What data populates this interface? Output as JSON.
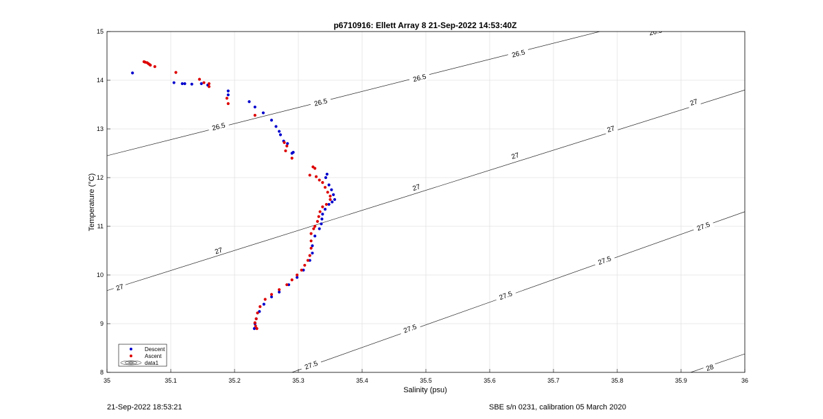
{
  "chart_data": {
    "type": "scatter",
    "title": "p6710916: Ellett Array 8 21-Sep-2022 14:53:40Z",
    "xlabel": "Salinity (psu)",
    "ylabel": "Temperature (°C)",
    "xlim": [
      35,
      36
    ],
    "ylim": [
      8,
      15
    ],
    "xticks": [
      "35",
      "35.1",
      "35.2",
      "35.3",
      "35.4",
      "35.5",
      "35.6",
      "35.7",
      "35.8",
      "35.9",
      "36"
    ],
    "yticks": [
      "8",
      "9",
      "10",
      "11",
      "12",
      "13",
      "14",
      "15"
    ],
    "grid": true,
    "legend_position": "bottom-left",
    "legend": [
      "Descent",
      "Ascent",
      "data1"
    ],
    "series": [
      {
        "name": "Descent",
        "color": "#0000cc",
        "points": [
          [
            35.04,
            14.15
          ],
          [
            35.105,
            13.95
          ],
          [
            35.118,
            13.93
          ],
          [
            35.122,
            13.93
          ],
          [
            35.133,
            13.92
          ],
          [
            35.148,
            13.93
          ],
          [
            35.158,
            13.9
          ],
          [
            35.19,
            13.78
          ],
          [
            35.19,
            13.7
          ],
          [
            35.223,
            13.56
          ],
          [
            35.232,
            13.45
          ],
          [
            35.245,
            13.33
          ],
          [
            35.258,
            13.18
          ],
          [
            35.265,
            13.05
          ],
          [
            35.27,
            12.95
          ],
          [
            35.272,
            12.88
          ],
          [
            35.277,
            12.75
          ],
          [
            35.283,
            12.7
          ],
          [
            35.292,
            12.52
          ],
          [
            35.29,
            12.5
          ],
          [
            35.345,
            12.07
          ],
          [
            35.343,
            12.0
          ],
          [
            35.348,
            11.85
          ],
          [
            35.352,
            11.75
          ],
          [
            35.355,
            11.65
          ],
          [
            35.357,
            11.55
          ],
          [
            35.353,
            11.5
          ],
          [
            35.348,
            11.45
          ],
          [
            35.342,
            11.35
          ],
          [
            35.338,
            11.25
          ],
          [
            35.337,
            11.15
          ],
          [
            35.336,
            11.05
          ],
          [
            35.333,
            10.95
          ],
          [
            35.326,
            10.8
          ],
          [
            35.322,
            10.6
          ],
          [
            35.322,
            10.45
          ],
          [
            35.318,
            10.3
          ],
          [
            35.308,
            10.1
          ],
          [
            35.298,
            9.95
          ],
          [
            35.285,
            9.8
          ],
          [
            35.27,
            9.65
          ],
          [
            35.258,
            9.55
          ],
          [
            35.246,
            9.4
          ],
          [
            35.239,
            9.25
          ],
          [
            35.234,
            9.1
          ],
          [
            35.232,
            9.0
          ],
          [
            35.231,
            8.9
          ]
        ]
      },
      {
        "name": "Ascent",
        "color": "#dd0000",
        "points": [
          [
            35.058,
            14.38
          ],
          [
            35.06,
            14.37
          ],
          [
            35.063,
            14.36
          ],
          [
            35.065,
            14.34
          ],
          [
            35.067,
            14.32
          ],
          [
            35.068,
            14.31
          ],
          [
            35.075,
            14.28
          ],
          [
            35.108,
            14.16
          ],
          [
            35.145,
            14.02
          ],
          [
            35.152,
            13.95
          ],
          [
            35.16,
            13.93
          ],
          [
            35.16,
            13.87
          ],
          [
            35.188,
            13.63
          ],
          [
            35.19,
            13.52
          ],
          [
            35.232,
            13.28
          ],
          [
            35.278,
            12.72
          ],
          [
            35.282,
            12.65
          ],
          [
            35.28,
            12.55
          ],
          [
            35.29,
            12.4
          ],
          [
            35.323,
            12.22
          ],
          [
            35.326,
            12.19
          ],
          [
            35.318,
            12.05
          ],
          [
            35.328,
            12.02
          ],
          [
            35.333,
            11.95
          ],
          [
            35.338,
            11.9
          ],
          [
            35.342,
            11.8
          ],
          [
            35.346,
            11.7
          ],
          [
            35.35,
            11.62
          ],
          [
            35.35,
            11.55
          ],
          [
            35.344,
            11.45
          ],
          [
            35.338,
            11.4
          ],
          [
            35.334,
            11.3
          ],
          [
            35.332,
            11.2
          ],
          [
            35.33,
            11.1
          ],
          [
            35.326,
            11.0
          ],
          [
            35.324,
            10.95
          ],
          [
            35.32,
            10.85
          ],
          [
            35.32,
            10.7
          ],
          [
            35.32,
            10.55
          ],
          [
            35.318,
            10.4
          ],
          [
            35.315,
            10.3
          ],
          [
            35.31,
            10.2
          ],
          [
            35.305,
            10.1
          ],
          [
            35.298,
            10.0
          ],
          [
            35.29,
            9.9
          ],
          [
            35.282,
            9.8
          ],
          [
            35.27,
            9.7
          ],
          [
            35.258,
            9.6
          ],
          [
            35.248,
            9.5
          ],
          [
            35.24,
            9.35
          ],
          [
            35.236,
            9.22
          ],
          [
            35.234,
            9.1
          ],
          [
            35.232,
            9.02
          ],
          [
            35.233,
            8.95
          ],
          [
            35.235,
            8.9
          ]
        ]
      }
    ],
    "contours": [
      {
        "level": "26.5",
        "points": [
          [
            35.0,
            12.45
          ],
          [
            36.0,
            15.75
          ]
        ],
        "labels": [
          [
            35.175,
            13.05
          ],
          [
            35.335,
            13.55
          ],
          [
            35.49,
            14.05
          ],
          [
            35.645,
            14.55
          ],
          [
            35.86,
            15.0
          ]
        ]
      },
      {
        "level": "27",
        "points": [
          [
            35.0,
            9.68
          ],
          [
            36.0,
            13.8
          ]
        ],
        "labels": [
          [
            35.02,
            9.75
          ],
          [
            35.175,
            10.5
          ],
          [
            35.485,
            11.8
          ],
          [
            35.64,
            12.45
          ],
          [
            35.79,
            13.0
          ],
          [
            35.92,
            13.55
          ]
        ]
      },
      {
        "level": "27.5",
        "points": [
          [
            35.29,
            8.0
          ],
          [
            36.0,
            11.3
          ]
        ],
        "labels": [
          [
            35.32,
            8.15
          ],
          [
            35.475,
            8.9
          ],
          [
            35.625,
            9.58
          ],
          [
            35.78,
            10.3
          ],
          [
            35.935,
            11.0
          ]
        ]
      },
      {
        "level": "28",
        "points": [
          [
            35.915,
            8.0
          ],
          [
            36.0,
            8.38
          ]
        ],
        "labels": [
          [
            35.945,
            8.1
          ]
        ]
      }
    ]
  },
  "footer": {
    "left": "21-Sep-2022 18:53:21",
    "right": "SBE s/n 0231, calibration 05 March 2020"
  }
}
